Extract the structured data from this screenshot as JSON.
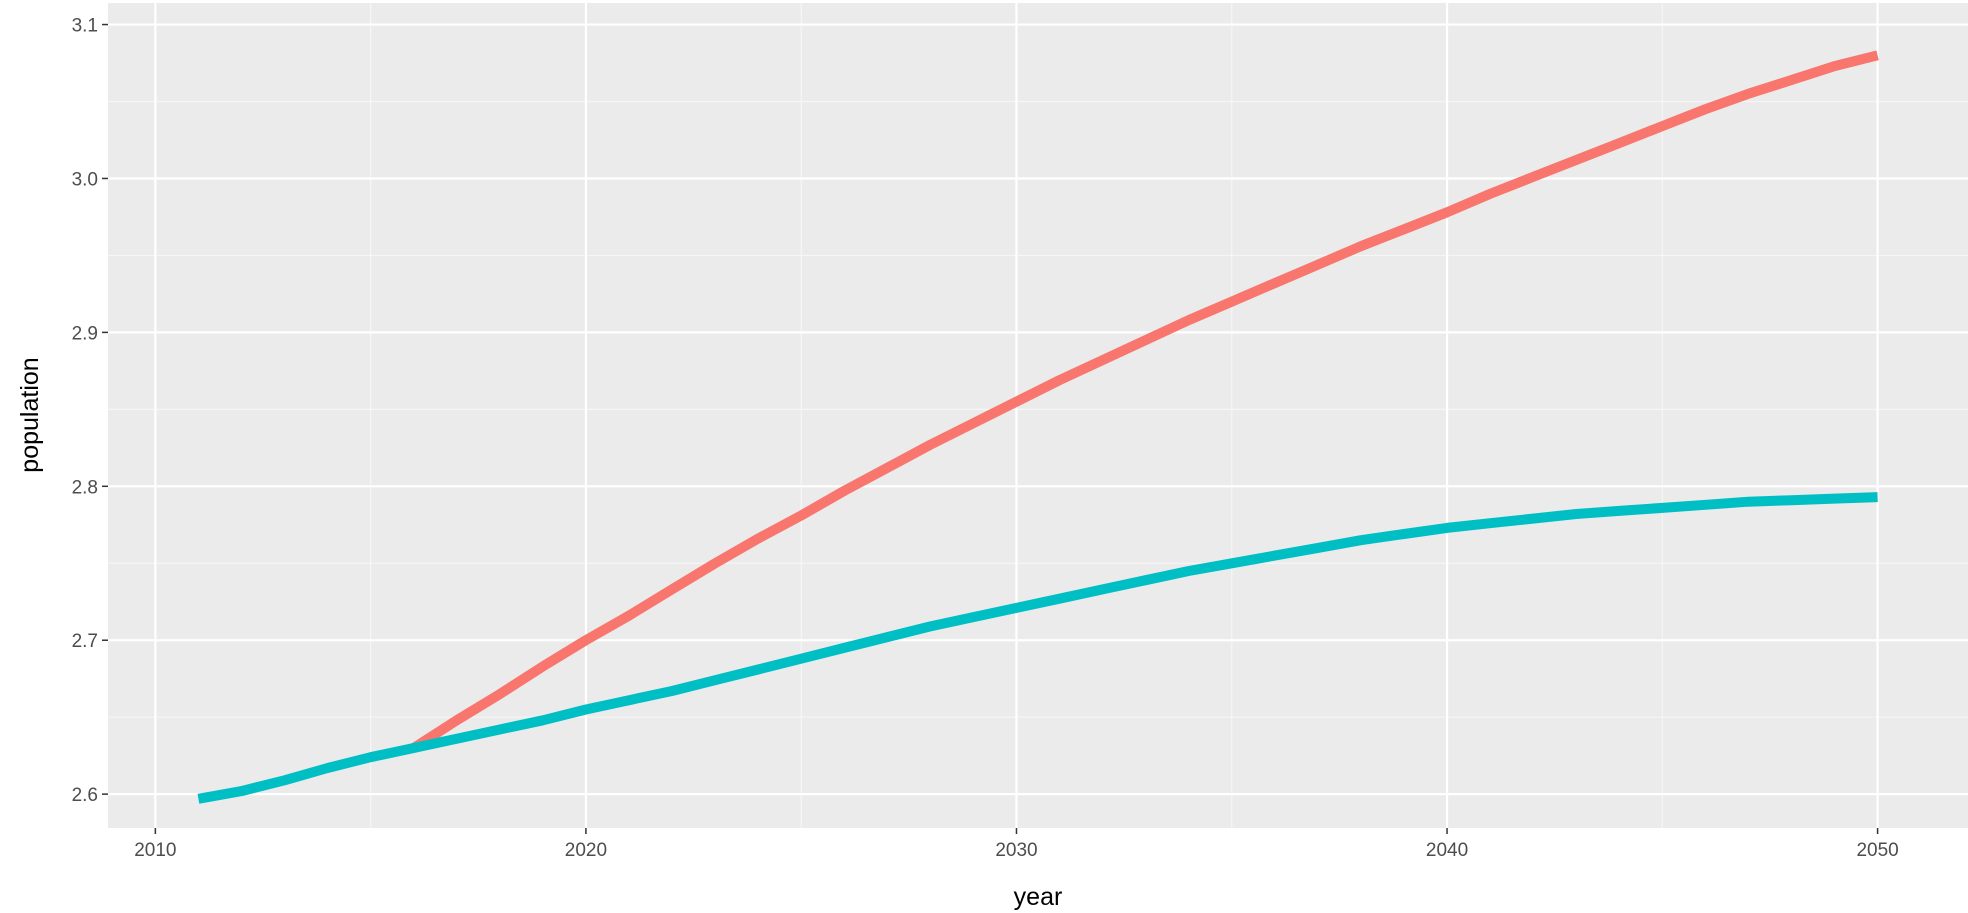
{
  "chart_data": {
    "type": "line",
    "title": "",
    "xlabel": "year",
    "ylabel": "population",
    "xlim": [
      2008.9,
      2052.1
    ],
    "ylim": [
      2.578,
      3.114
    ],
    "xticks": [
      2010,
      2020,
      2030,
      2040,
      2050
    ],
    "xtick_labels": [
      "2010",
      "2020",
      "2030",
      "2040",
      "2050"
    ],
    "yticks": [
      2.6,
      2.7,
      2.8,
      2.9,
      3.0,
      3.1
    ],
    "ytick_labels": [
      "2.6",
      "2.7",
      "2.8",
      "2.9",
      "3.0",
      "3.1"
    ],
    "grid": true,
    "legend": "none",
    "series": [
      {
        "color": "#F8766D",
        "x": [
          2016,
          2017,
          2018,
          2019,
          2020,
          2021,
          2022,
          2023,
          2024,
          2025,
          2026,
          2027,
          2028,
          2029,
          2030,
          2031,
          2032,
          2033,
          2034,
          2035,
          2036,
          2037,
          2038,
          2039,
          2040,
          2041,
          2042,
          2043,
          2044,
          2045,
          2046,
          2047,
          2048,
          2049,
          2050
        ],
        "y": [
          2.63,
          2.648,
          2.665,
          2.683,
          2.7,
          2.716,
          2.733,
          2.75,
          2.766,
          2.781,
          2.797,
          2.812,
          2.827,
          2.841,
          2.855,
          2.869,
          2.882,
          2.895,
          2.908,
          2.92,
          2.932,
          2.944,
          2.956,
          2.967,
          2.978,
          2.99,
          3.001,
          3.012,
          3.023,
          3.034,
          3.045,
          3.055,
          3.064,
          3.073,
          3.08
        ]
      },
      {
        "color": "#00BFC4",
        "x": [
          2011,
          2012,
          2013,
          2014,
          2015,
          2016,
          2017,
          2018,
          2019,
          2020,
          2021,
          2022,
          2023,
          2024,
          2025,
          2026,
          2027,
          2028,
          2029,
          2030,
          2031,
          2032,
          2033,
          2034,
          2035,
          2036,
          2037,
          2038,
          2039,
          2040,
          2041,
          2042,
          2043,
          2044,
          2045,
          2046,
          2047,
          2048,
          2049,
          2050
        ],
        "y": [
          2.597,
          2.602,
          2.609,
          2.617,
          2.624,
          2.63,
          2.636,
          2.642,
          2.648,
          2.655,
          2.661,
          2.667,
          2.674,
          2.681,
          2.688,
          2.695,
          2.702,
          2.709,
          2.715,
          2.721,
          2.727,
          2.733,
          2.739,
          2.745,
          2.75,
          2.755,
          2.76,
          2.765,
          2.769,
          2.773,
          2.776,
          2.779,
          2.782,
          2.784,
          2.786,
          2.788,
          2.79,
          2.791,
          2.792,
          2.793
        ]
      }
    ]
  }
}
